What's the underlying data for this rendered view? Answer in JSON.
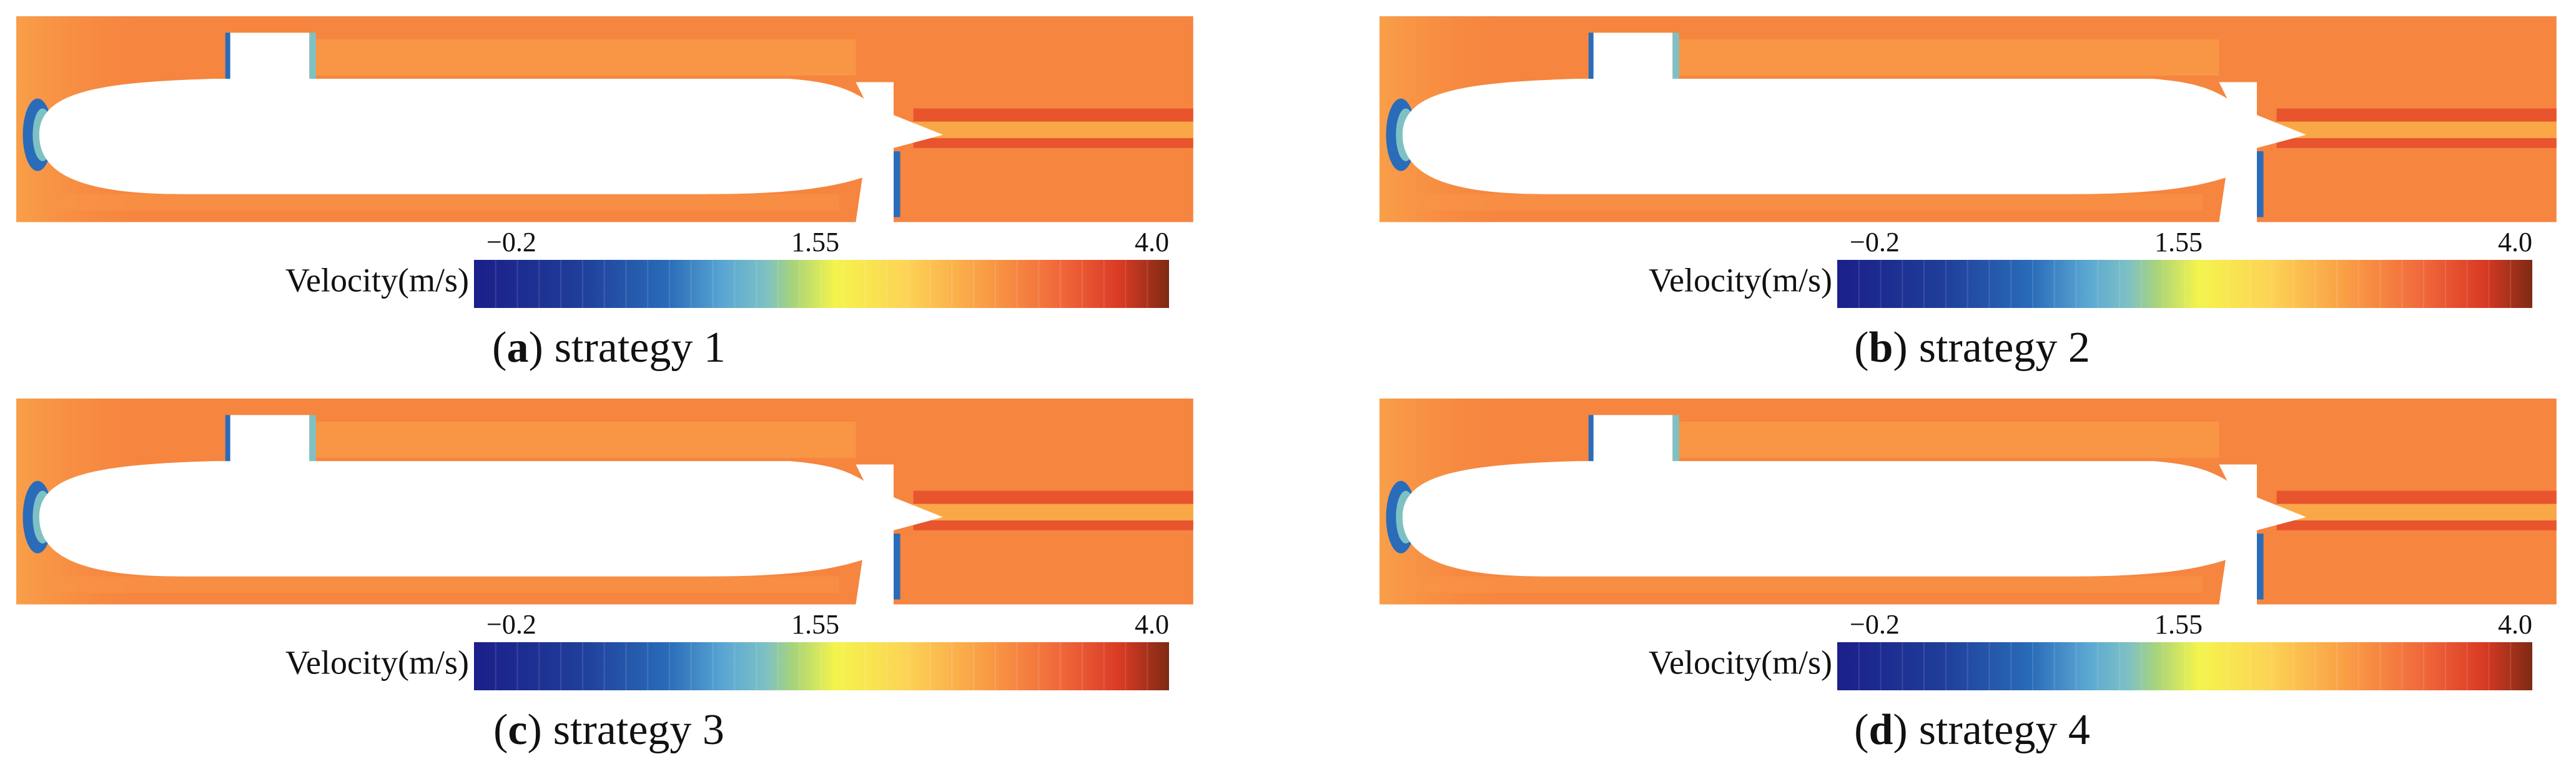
{
  "panels": [
    {
      "colorbar": {
        "title": "Velocity(m/s)",
        "ticks": [
          "−0.2",
          "1.55",
          "4.0"
        ]
      },
      "caption": {
        "open": "(",
        "letter": "a",
        "close": ")",
        "text": "strategy 1"
      }
    },
    {
      "colorbar": {
        "title": "Velocity(m/s)",
        "ticks": [
          "−0.2",
          "1.55",
          "4.0"
        ]
      },
      "caption": {
        "open": "(",
        "letter": "b",
        "close": ")",
        "text": "strategy 2"
      }
    },
    {
      "colorbar": {
        "title": "Velocity(m/s)",
        "ticks": [
          "−0.2",
          "1.55",
          "4.0"
        ]
      },
      "caption": {
        "open": "(",
        "letter": "c",
        "close": ")",
        "text": "strategy 3"
      }
    },
    {
      "colorbar": {
        "title": "Velocity(m/s)",
        "ticks": [
          "−0.2",
          "1.55",
          "4.0"
        ]
      },
      "caption": {
        "open": "(",
        "letter": "d",
        "close": ")",
        "text": "strategy 4"
      }
    }
  ]
}
